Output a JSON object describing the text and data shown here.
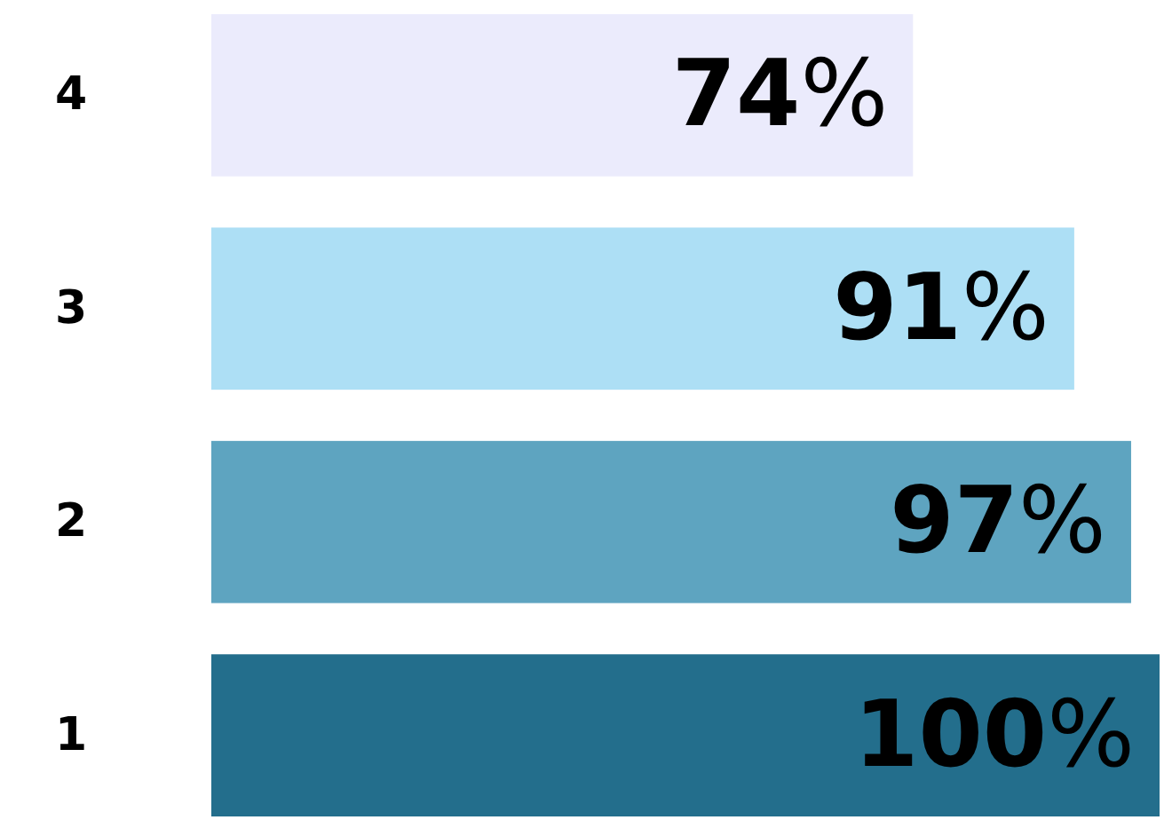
{
  "chart_data": {
    "type": "bar",
    "orientation": "horizontal",
    "categories": [
      "4",
      "3",
      "2",
      "1"
    ],
    "values": [
      74,
      91,
      97,
      100
    ],
    "colors": [
      "#ebebfc",
      "#addff5",
      "#5ea4c0",
      "#236e8c"
    ],
    "value_labels": [
      "74%",
      "91%",
      "97%",
      "100%"
    ]
  }
}
